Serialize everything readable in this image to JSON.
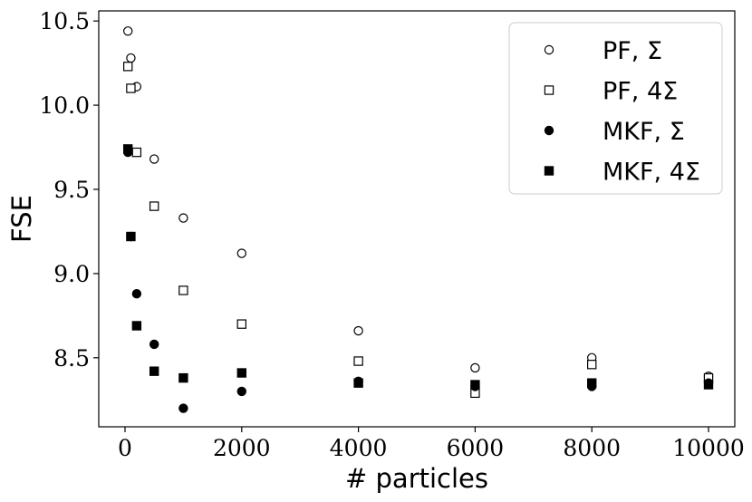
{
  "chart_data": {
    "type": "scatter",
    "xlabel": "# particles",
    "ylabel": "FSE",
    "xlim": [
      -450,
      10450
    ],
    "ylim": [
      8.09,
      10.56
    ],
    "xticks": [
      0,
      2000,
      4000,
      6000,
      8000,
      10000
    ],
    "xtick_labels": [
      "0",
      "2000",
      "4000",
      "6000",
      "8000",
      "10000"
    ],
    "yticks": [
      8.5,
      9.0,
      9.5,
      10.0,
      10.5
    ],
    "ytick_labels": [
      "8.5",
      "9.0",
      "9.5",
      "10.0",
      "10.5"
    ],
    "legend_position": "top-right",
    "series": [
      {
        "name": "PF, Σ",
        "marker": "circle",
        "filled": false,
        "x": [
          50,
          100,
          200,
          500,
          1000,
          2000,
          4000,
          6000,
          8000,
          10000
        ],
        "y": [
          10.44,
          10.28,
          10.11,
          9.68,
          9.33,
          9.12,
          8.66,
          8.44,
          8.5,
          8.39
        ]
      },
      {
        "name": "PF, 4Σ",
        "marker": "square",
        "filled": false,
        "x": [
          50,
          100,
          200,
          500,
          1000,
          2000,
          4000,
          6000,
          8000,
          10000
        ],
        "y": [
          10.23,
          10.1,
          9.72,
          9.4,
          8.9,
          8.7,
          8.48,
          8.29,
          8.46,
          8.38
        ]
      },
      {
        "name": "MKF, Σ",
        "marker": "circle",
        "filled": true,
        "x": [
          50,
          100,
          200,
          500,
          1000,
          2000,
          4000,
          6000,
          8000,
          10000
        ],
        "y": [
          9.72,
          9.22,
          8.88,
          8.58,
          8.2,
          8.3,
          8.36,
          8.33,
          8.33,
          8.35
        ]
      },
      {
        "name": "MKF, 4Σ",
        "marker": "square",
        "filled": true,
        "x": [
          50,
          100,
          200,
          500,
          1000,
          2000,
          4000,
          6000,
          8000,
          10000
        ],
        "y": [
          9.74,
          9.22,
          8.69,
          8.42,
          8.38,
          8.41,
          8.35,
          8.34,
          8.35,
          8.34
        ]
      }
    ]
  }
}
